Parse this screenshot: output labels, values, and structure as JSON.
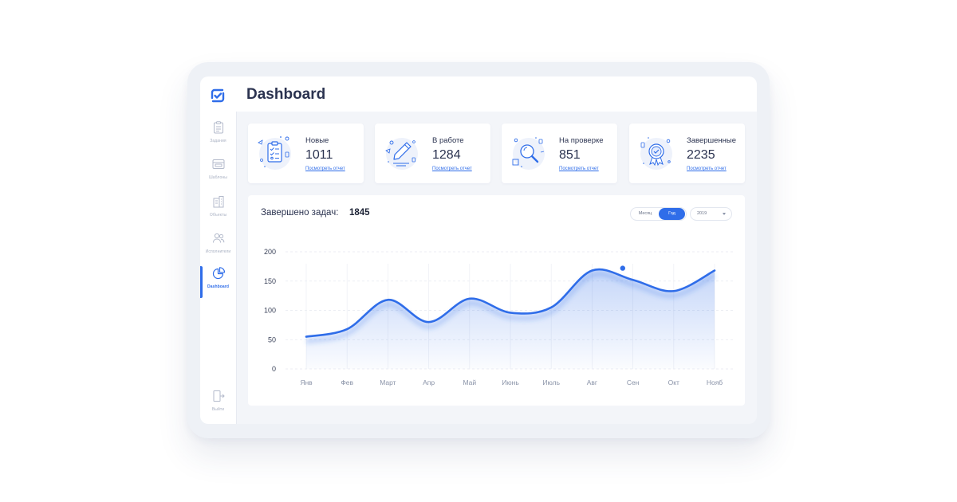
{
  "page": {
    "title": "Dashboard"
  },
  "sidebar": {
    "items": [
      {
        "label": "Задания",
        "icon": "clipboard-icon"
      },
      {
        "label": "Шаблоны",
        "icon": "template-icon"
      },
      {
        "label": "Объекты",
        "icon": "building-icon"
      },
      {
        "label": "Исполнители",
        "icon": "users-icon"
      },
      {
        "label": "Dashboard",
        "icon": "pie-chart-icon",
        "active": true
      }
    ],
    "logout": {
      "label": "Выйти",
      "icon": "logout-icon"
    }
  },
  "cards": [
    {
      "title": "Новые",
      "value": "1011",
      "link": "Посмотреть отчет",
      "icon": "clipboard-illustration"
    },
    {
      "title": "В работе",
      "value": "1284",
      "link": "Посмотреть отчет",
      "icon": "pencil-illustration"
    },
    {
      "title": "На проверке",
      "value": "851",
      "link": "Посмотреть отчет",
      "icon": "magnifier-illustration"
    },
    {
      "title": "Завершенные",
      "value": "2235",
      "link": "Посмотреть отчет",
      "icon": "award-illustration"
    }
  ],
  "chart_panel": {
    "title": "Завершено задач:",
    "total": "1845",
    "toggle": {
      "month": "Месяц",
      "year": "Год",
      "selected": "year"
    },
    "year_select": "2019"
  },
  "chart_data": {
    "type": "area",
    "title": "",
    "xlabel": "",
    "ylabel": "",
    "categories": [
      "Янв",
      "Фев",
      "Март",
      "Апр",
      "Май",
      "Июнь",
      "Июль",
      "Авг",
      "Сен",
      "Окт",
      "Нояб"
    ],
    "series": [
      {
        "values": [
          55,
          68,
          118,
          80,
          120,
          96,
          105,
          168,
          152,
          133,
          168
        ]
      }
    ],
    "ylim": [
      0,
      200
    ],
    "yticks": [
      "0",
      "50",
      "100",
      "150",
      "200"
    ],
    "highlight_point": {
      "x": 7.75,
      "y": 172
    },
    "grid": true,
    "accent_color": "#2f6de9"
  }
}
